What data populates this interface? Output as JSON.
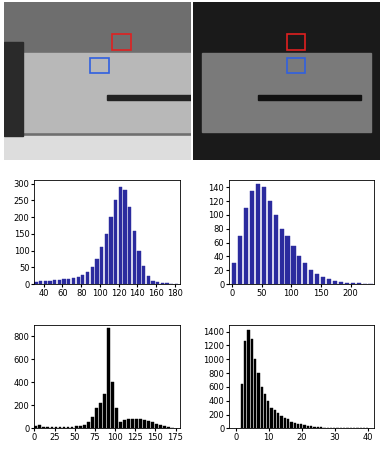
{
  "chart_data": [
    {
      "type": "histogram",
      "color": "#2b2b9e",
      "bins": [
        30,
        35,
        40,
        45,
        50,
        55,
        60,
        65,
        70,
        75,
        80,
        85,
        90,
        95,
        100,
        105,
        110,
        115,
        120,
        125,
        130,
        135,
        140,
        145,
        150,
        155,
        160,
        165,
        170,
        175,
        180,
        185
      ],
      "counts": [
        5,
        8,
        10,
        10,
        12,
        12,
        14,
        15,
        18,
        22,
        28,
        35,
        50,
        75,
        110,
        150,
        200,
        250,
        290,
        280,
        230,
        160,
        100,
        55,
        25,
        10,
        5,
        3,
        2,
        1,
        0
      ],
      "xlim": [
        30,
        185
      ],
      "xticks": [
        40,
        60,
        80,
        100,
        120,
        140,
        160,
        180
      ],
      "ylim": [
        0,
        310
      ],
      "yticks": [
        0,
        50,
        100,
        150,
        200,
        250,
        300
      ]
    },
    {
      "type": "histogram",
      "color": "#2b2b9e",
      "bins": [
        0,
        10,
        20,
        30,
        40,
        50,
        60,
        70,
        80,
        90,
        100,
        110,
        120,
        130,
        140,
        150,
        160,
        170,
        180,
        190,
        200,
        210,
        220,
        230,
        240
      ],
      "counts": [
        30,
        70,
        110,
        135,
        145,
        140,
        120,
        100,
        80,
        70,
        55,
        40,
        30,
        20,
        15,
        10,
        7,
        5,
        3,
        2,
        1,
        1,
        0,
        0
      ],
      "xlim": [
        -5,
        240
      ],
      "xticks": [
        0,
        50,
        100,
        150,
        200
      ],
      "ylim": [
        0,
        150
      ],
      "yticks": [
        0,
        20,
        40,
        60,
        80,
        100,
        120,
        140
      ]
    },
    {
      "type": "histogram",
      "color": "#000000",
      "bins": [
        0,
        5,
        10,
        15,
        20,
        25,
        30,
        35,
        40,
        45,
        50,
        55,
        60,
        65,
        70,
        75,
        80,
        85,
        90,
        95,
        100,
        105,
        110,
        115,
        120,
        125,
        130,
        135,
        140,
        145,
        150,
        155,
        160,
        165,
        170,
        175
      ],
      "counts": [
        20,
        30,
        15,
        10,
        10,
        10,
        12,
        12,
        15,
        15,
        20,
        25,
        30,
        60,
        100,
        180,
        220,
        300,
        870,
        400,
        180,
        60,
        70,
        80,
        85,
        85,
        80,
        75,
        65,
        55,
        40,
        30,
        20,
        10,
        5
      ],
      "xlim": [
        0,
        180
      ],
      "xticks": [
        0,
        25,
        50,
        75,
        100,
        125,
        150,
        175
      ],
      "ylim": [
        0,
        900
      ],
      "yticks": [
        0,
        200,
        400,
        600,
        800
      ]
    },
    {
      "type": "histogram",
      "color": "#000000",
      "bins": [
        1.5,
        2.5,
        3.5,
        4.5,
        5.5,
        6.5,
        7.5,
        8.5,
        9.5,
        10.5,
        11.5,
        12.5,
        13.5,
        14.5,
        15.5,
        16.5,
        17.5,
        18.5,
        19.5,
        20.5,
        21.5,
        22.5,
        23.5,
        24.5,
        25.5,
        26.5,
        27.5,
        28.5,
        29.5,
        30.5,
        31.5,
        32.5,
        33.5,
        34.5,
        35.5,
        36.5,
        37.5,
        38.5,
        39.5,
        40.5
      ],
      "counts": [
        650,
        1270,
        1420,
        1290,
        1000,
        800,
        600,
        500,
        400,
        300,
        260,
        220,
        180,
        150,
        130,
        100,
        80,
        70,
        60,
        50,
        40,
        30,
        25,
        20,
        15,
        12,
        10,
        8,
        6,
        5,
        4,
        3,
        2,
        2,
        1,
        1,
        1,
        0,
        0
      ],
      "xlim": [
        -2,
        42
      ],
      "xticks": [
        0,
        10,
        20,
        30,
        40
      ],
      "ylim": [
        0,
        1500
      ],
      "yticks": [
        0,
        200,
        400,
        600,
        800,
        1000,
        1200,
        1400
      ]
    }
  ]
}
